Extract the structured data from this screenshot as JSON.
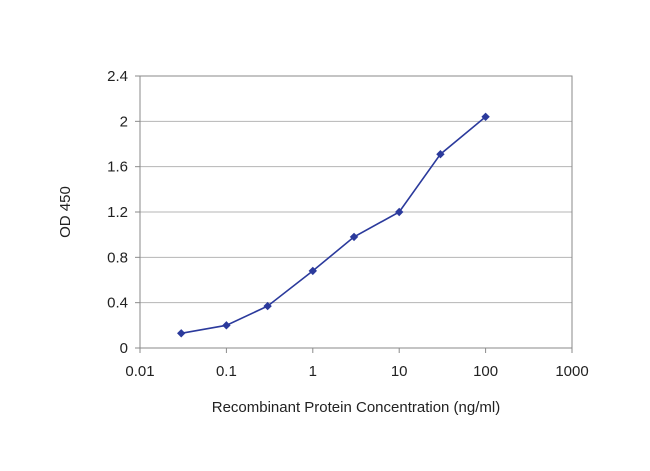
{
  "chart_data": {
    "type": "line",
    "xlabel": "Recombinant Protein Concentration (ng/ml)",
    "ylabel": "OD 450",
    "x_scale": "log",
    "xlim": [
      0.01,
      1000
    ],
    "ylim": [
      0,
      2.4
    ],
    "x_ticks": [
      "0.01",
      "0.1",
      "1",
      "10",
      "100",
      "1000"
    ],
    "y_ticks": [
      "0",
      "0.4",
      "0.8",
      "1.2",
      "1.6",
      "2",
      "2.4"
    ],
    "grid": "horizontal",
    "legend": "none",
    "series": [
      {
        "color": "#2b3a9c",
        "x": [
          0.03,
          0.1,
          0.3,
          1,
          3,
          10,
          30,
          100
        ],
        "y": [
          0.13,
          0.2,
          0.37,
          0.68,
          0.98,
          1.2,
          1.71,
          2.04
        ]
      }
    ]
  },
  "colors": {
    "series_line": "#2b3a9c",
    "grid": "#b5b5b5",
    "axis": "#8a8a8a",
    "frame": "#8a8a8a"
  }
}
